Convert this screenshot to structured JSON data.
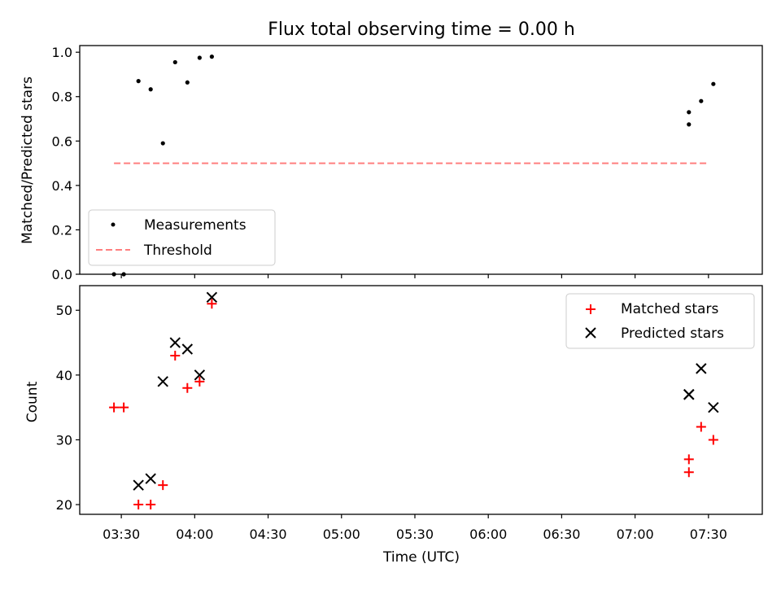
{
  "title": "Flux total observing time = 0.00 h",
  "colors": {
    "measurements": "#000000",
    "threshold": "#ff7f7f",
    "matched": "#ff0000",
    "predicted": "#000000"
  },
  "chart_data": [
    {
      "type": "scatter",
      "ylabel": "Matched/Predicted stars",
      "xlim": [
        "03:13",
        "07:52"
      ],
      "ylim": [
        0,
        1.03
      ],
      "y_ticks": [
        "0.0",
        "0.2",
        "0.4",
        "0.6",
        "0.8",
        "1.0"
      ],
      "grid": false,
      "legend": "lower-left",
      "series": [
        {
          "name": "Measurements",
          "marker": "dot",
          "points": [
            {
              "x": "03:27",
              "y": 0.0
            },
            {
              "x": "03:31",
              "y": 0.0
            },
            {
              "x": "03:37",
              "y": 0.87
            },
            {
              "x": "03:42",
              "y": 0.833
            },
            {
              "x": "03:47",
              "y": 0.59
            },
            {
              "x": "03:52",
              "y": 0.955
            },
            {
              "x": "03:57",
              "y": 0.864
            },
            {
              "x": "04:02",
              "y": 0.975
            },
            {
              "x": "04:07",
              "y": 0.98
            },
            {
              "x": "07:22",
              "y": 0.73
            },
            {
              "x": "07:22",
              "y": 0.675
            },
            {
              "x": "07:27",
              "y": 0.78
            },
            {
              "x": "07:32",
              "y": 0.857
            }
          ]
        },
        {
          "name": "Threshold",
          "marker": "dashed-line",
          "points": [
            {
              "x": "03:27",
              "y": 0.5
            },
            {
              "x": "07:30",
              "y": 0.5
            }
          ]
        }
      ]
    },
    {
      "type": "scatter",
      "xlabel": "Time (UTC)",
      "ylabel": "Count",
      "xlim": [
        "03:13",
        "07:52"
      ],
      "ylim": [
        18.5,
        53.8
      ],
      "x_ticks": [
        "03:30",
        "04:00",
        "04:30",
        "05:00",
        "05:30",
        "06:00",
        "06:30",
        "07:00",
        "07:30"
      ],
      "y_ticks": [
        "20",
        "30",
        "40",
        "50"
      ],
      "grid": false,
      "legend": "upper-right",
      "series": [
        {
          "name": "Matched stars",
          "marker": "plus",
          "points": [
            {
              "x": "03:27",
              "y": 35
            },
            {
              "x": "03:31",
              "y": 35
            },
            {
              "x": "03:37",
              "y": 20
            },
            {
              "x": "03:42",
              "y": 20
            },
            {
              "x": "03:47",
              "y": 23
            },
            {
              "x": "03:52",
              "y": 43
            },
            {
              "x": "03:57",
              "y": 38
            },
            {
              "x": "04:02",
              "y": 39
            },
            {
              "x": "04:07",
              "y": 51
            },
            {
              "x": "07:22",
              "y": 27
            },
            {
              "x": "07:22",
              "y": 25
            },
            {
              "x": "07:27",
              "y": 32
            },
            {
              "x": "07:32",
              "y": 30
            }
          ]
        },
        {
          "name": "Predicted stars",
          "marker": "x",
          "points": [
            {
              "x": "03:37",
              "y": 23
            },
            {
              "x": "03:42",
              "y": 24
            },
            {
              "x": "03:47",
              "y": 39
            },
            {
              "x": "03:52",
              "y": 45
            },
            {
              "x": "03:57",
              "y": 44
            },
            {
              "x": "04:02",
              "y": 40
            },
            {
              "x": "04:07",
              "y": 52
            },
            {
              "x": "07:22",
              "y": 37
            },
            {
              "x": "07:22",
              "y": 37
            },
            {
              "x": "07:27",
              "y": 41
            },
            {
              "x": "07:32",
              "y": 35
            }
          ]
        }
      ]
    }
  ]
}
